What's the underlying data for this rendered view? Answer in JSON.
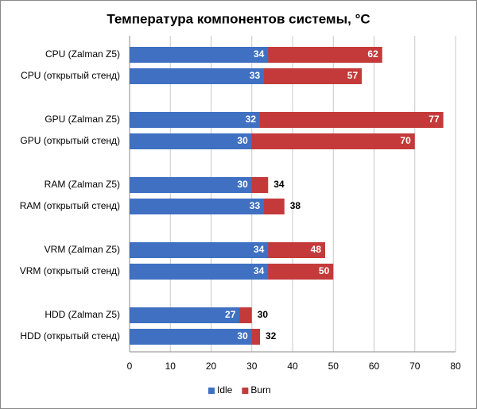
{
  "chart_data": {
    "type": "bar",
    "orientation": "horizontal",
    "overlap": true,
    "title": "Температура компонентов системы, °С",
    "categories": [
      "CPU (Zalman  Z5)",
      "CPU (открытый стенд)",
      "GPU (Zalman  Z5)",
      "GPU (открытый стенд)",
      "RAM (Zalman  Z5)",
      "RAM (открытый стенд)",
      "VRM (Zalman  Z5)",
      "VRM (открытый стенд)",
      "HDD (Zalman  Z5)",
      "HDD (открытый стенд)"
    ],
    "series": [
      {
        "name": "Idle",
        "color": "#3f70c2",
        "values": [
          34,
          33,
          32,
          30,
          30,
          33,
          34,
          34,
          27,
          30
        ]
      },
      {
        "name": "Burn",
        "color": "#c43a3a",
        "values": [
          62,
          57,
          77,
          70,
          34,
          38,
          48,
          50,
          30,
          32
        ]
      }
    ],
    "xlim": [
      0,
      80
    ],
    "xticks": [
      0,
      10,
      20,
      30,
      40,
      50,
      60,
      70,
      80
    ],
    "grid": true,
    "legend": "bottom"
  }
}
